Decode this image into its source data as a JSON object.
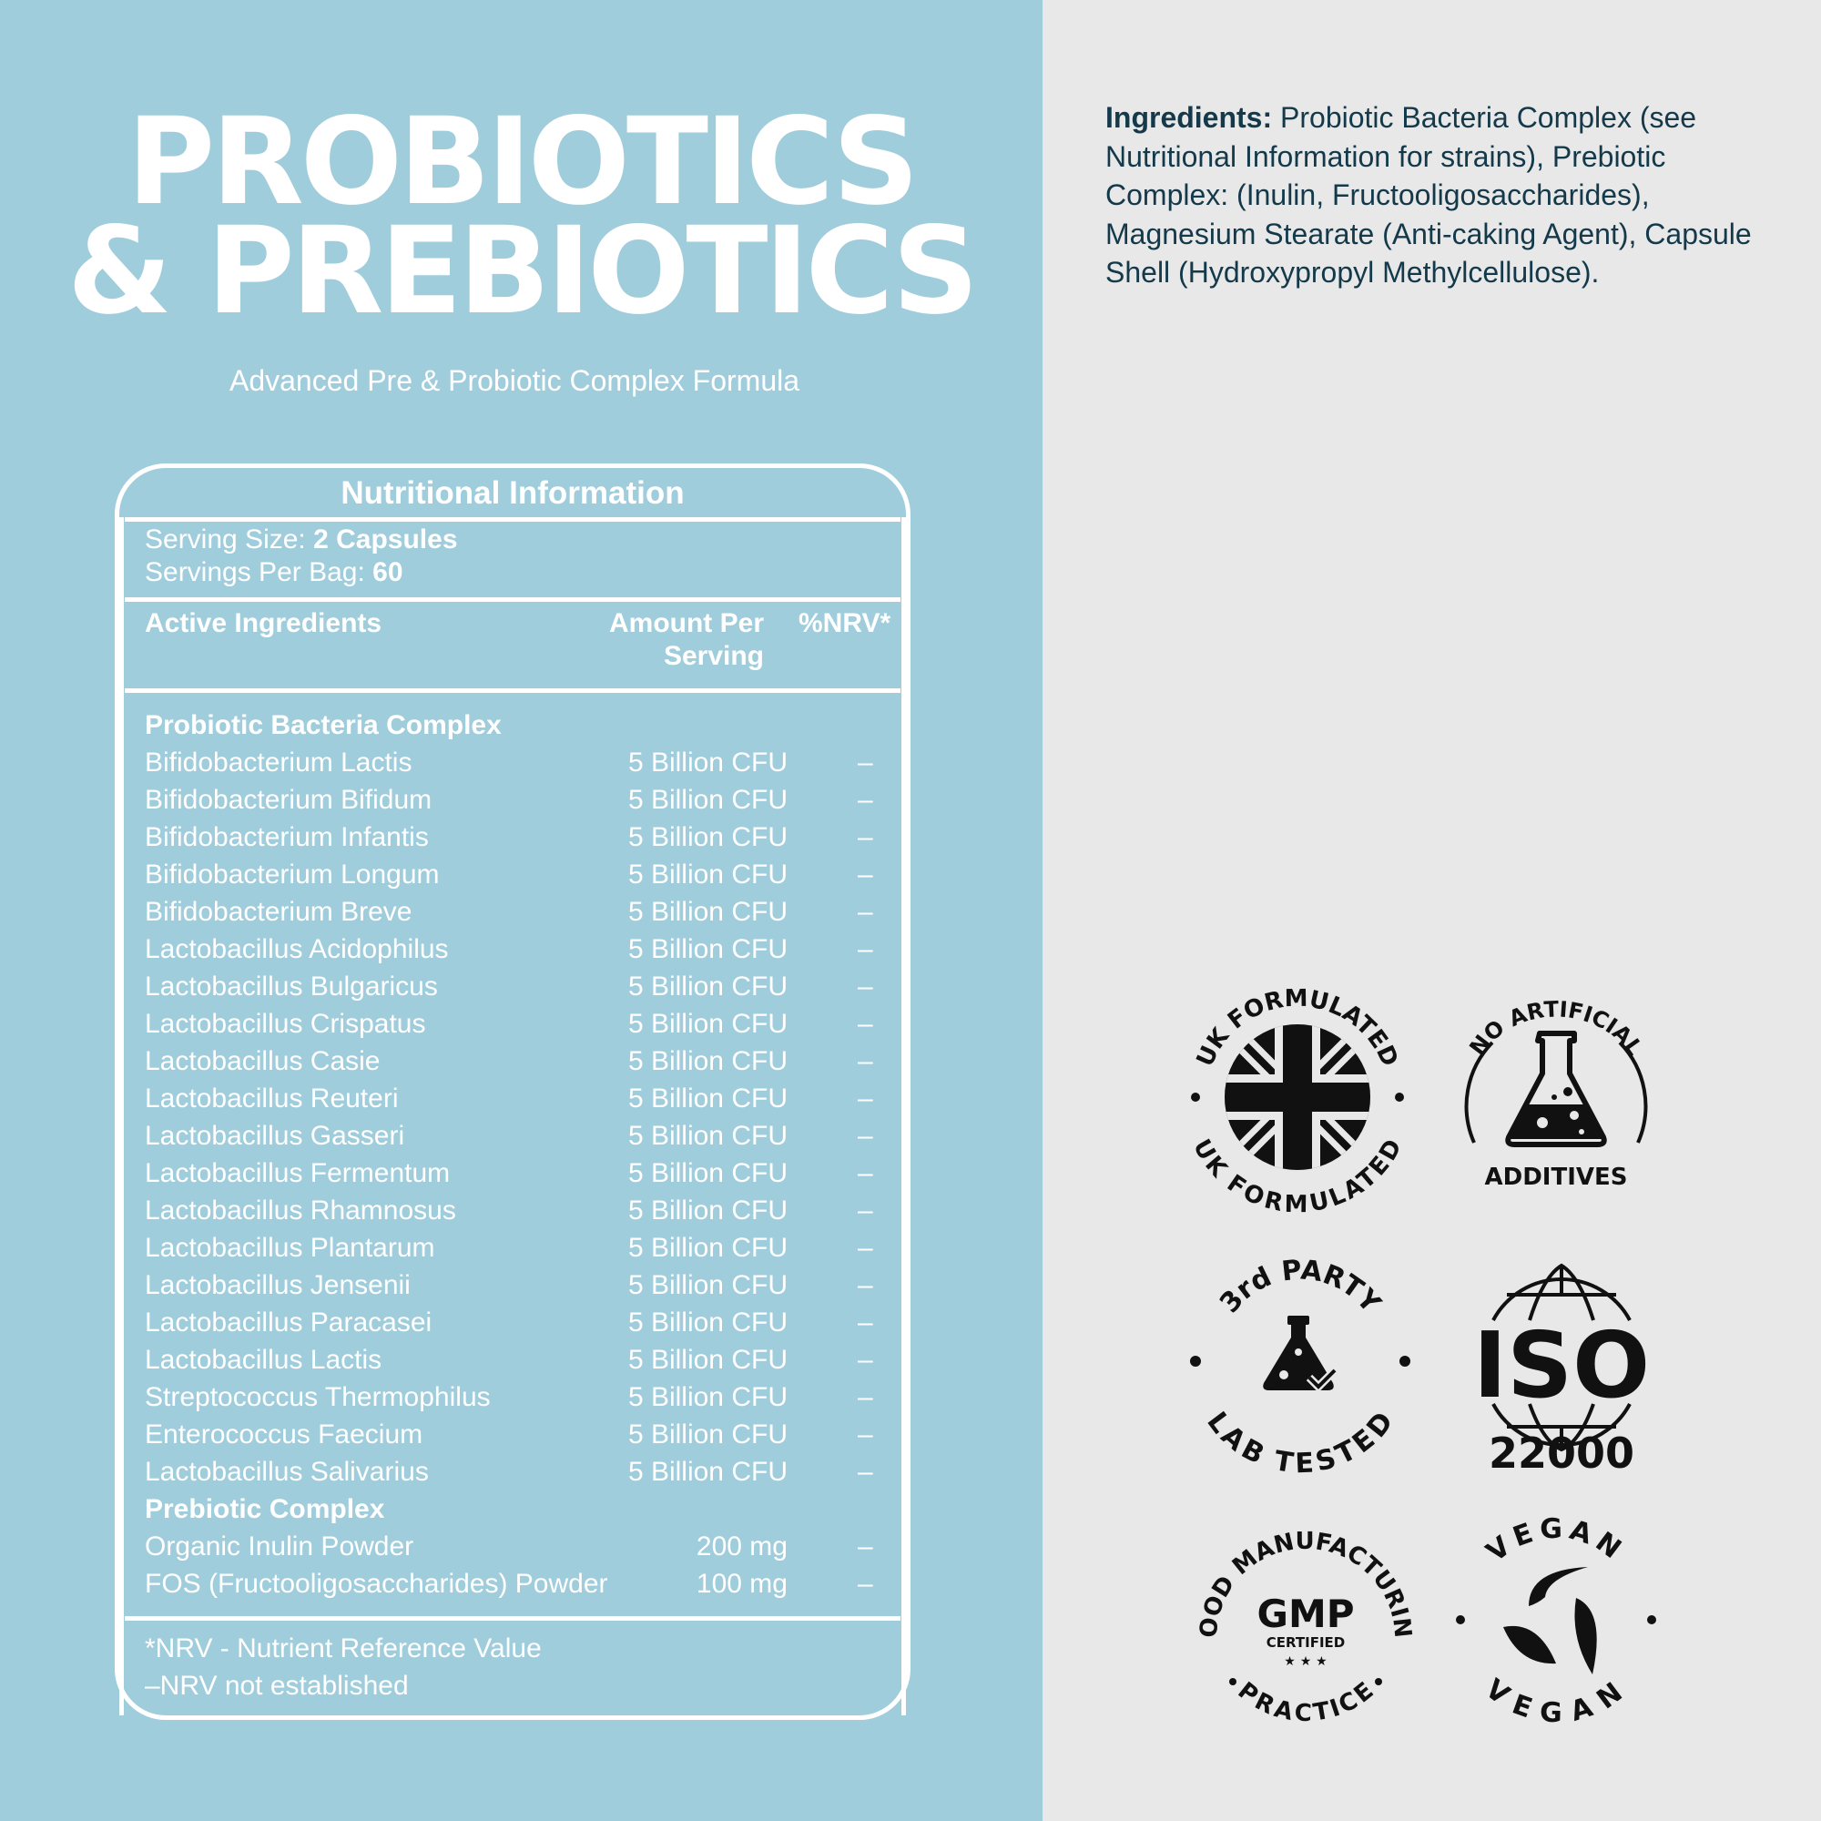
{
  "title": {
    "line1": "PROBIOTICS",
    "line2": "& PREBIOTICS"
  },
  "subtitle": "Advanced Pre & Probiotic Complex Formula",
  "colors": {
    "left_bg": "#a0cddc",
    "right_bg": "#e8e8e8",
    "ingredients_text": "#13394a",
    "badge_ink": "#111111"
  },
  "nutrition": {
    "heading": "Nutritional Information",
    "serving_size_label": "Serving Size:",
    "serving_size_value": "2 Capsules",
    "servings_label": "Servings Per Bag:",
    "servings_value": "60",
    "columns": {
      "ingredient": "Active Ingredients",
      "amount_line1": "Amount Per",
      "amount_line2": "Serving",
      "nrv": "%NRV*"
    },
    "rows": [
      {
        "name": "Probiotic Bacteria Complex",
        "section": true
      },
      {
        "name": "Bifidobacterium Lactis",
        "amount": "5 Billion CFU",
        "nrv": "–"
      },
      {
        "name": "Bifidobacterium Bifidum",
        "amount": "5 Billion CFU",
        "nrv": "–"
      },
      {
        "name": "Bifidobacterium Infantis",
        "amount": "5 Billion CFU",
        "nrv": "–"
      },
      {
        "name": "Bifidobacterium Longum",
        "amount": "5 Billion CFU",
        "nrv": "–"
      },
      {
        "name": "Bifidobacterium Breve",
        "amount": "5 Billion CFU",
        "nrv": "–"
      },
      {
        "name": "Lactobacillus Acidophilus",
        "amount": "5 Billion CFU",
        "nrv": "–"
      },
      {
        "name": "Lactobacillus Bulgaricus",
        "amount": "5 Billion CFU",
        "nrv": "–"
      },
      {
        "name": "Lactobacillus Crispatus",
        "amount": "5 Billion CFU",
        "nrv": "–"
      },
      {
        "name": "Lactobacillus Casie",
        "amount": "5 Billion CFU",
        "nrv": "–"
      },
      {
        "name": "Lactobacillus Reuteri",
        "amount": "5 Billion CFU",
        "nrv": "–"
      },
      {
        "name": "Lactobacillus Gasseri",
        "amount": "5 Billion CFU",
        "nrv": "–"
      },
      {
        "name": "Lactobacillus Fermentum",
        "amount": "5 Billion CFU",
        "nrv": "–"
      },
      {
        "name": "Lactobacillus Rhamnosus",
        "amount": "5 Billion CFU",
        "nrv": "–"
      },
      {
        "name": "Lactobacillus Plantarum",
        "amount": "5 Billion CFU",
        "nrv": "–"
      },
      {
        "name": "Lactobacillus Jensenii",
        "amount": "5 Billion CFU",
        "nrv": "–"
      },
      {
        "name": "Lactobacillus Paracasei",
        "amount": "5 Billion CFU",
        "nrv": "–"
      },
      {
        "name": "Lactobacillus Lactis",
        "amount": "5 Billion CFU",
        "nrv": "–"
      },
      {
        "name": "Streptococcus Thermophilus",
        "amount": "5 Billion CFU",
        "nrv": "–"
      },
      {
        "name": "Enterococcus Faecium",
        "amount": "5 Billion CFU",
        "nrv": "–"
      },
      {
        "name": "Lactobacillus Salivarius",
        "amount": "5 Billion CFU",
        "nrv": "–"
      },
      {
        "name": "Prebiotic Complex",
        "section": true
      },
      {
        "name": "Organic Inulin Powder",
        "amount": "200 mg",
        "nrv": "–"
      },
      {
        "name": "FOS (Fructooligosaccharides) Powder",
        "amount": "100 mg",
        "nrv": "–"
      }
    ],
    "footnote1": "*NRV - Nutrient Reference Value",
    "footnote2": "–NRV not established"
  },
  "ingredients": {
    "label": "Ingredients:",
    "text": "Probiotic Bacteria Complex (see Nutritional Information for strains), Prebiotic Complex: (Inulin, Fructooligosaccharides), Magnesium Stearate (Anti-caking Agent), Capsule Shell (Hydroxypropyl Methylcellulose)."
  },
  "badges": {
    "uk": {
      "icon": "union-jack-icon",
      "top": "UK FORMULATED",
      "bottom": "UK FORMULATED"
    },
    "additives": {
      "icon": "flask-icon",
      "top": "NO ARTIFICIAL",
      "bottom": "ADDITIVES"
    },
    "lab": {
      "icon": "lab-flask-check-icon",
      "top": "3rd PARTY",
      "bottom": "LAB TESTED"
    },
    "iso": {
      "icon": "globe-icon",
      "main": "ISO",
      "number": "22000"
    },
    "gmp": {
      "top": "GOOD MANUFACTURING",
      "bottom": "PRACTICE",
      "main": "GMP",
      "sub": "CERTIFIED",
      "stars": "★ ★ ★"
    },
    "vegan": {
      "icon": "leaves-icon",
      "top": "VEGAN",
      "bottom": "VEGAN"
    }
  }
}
